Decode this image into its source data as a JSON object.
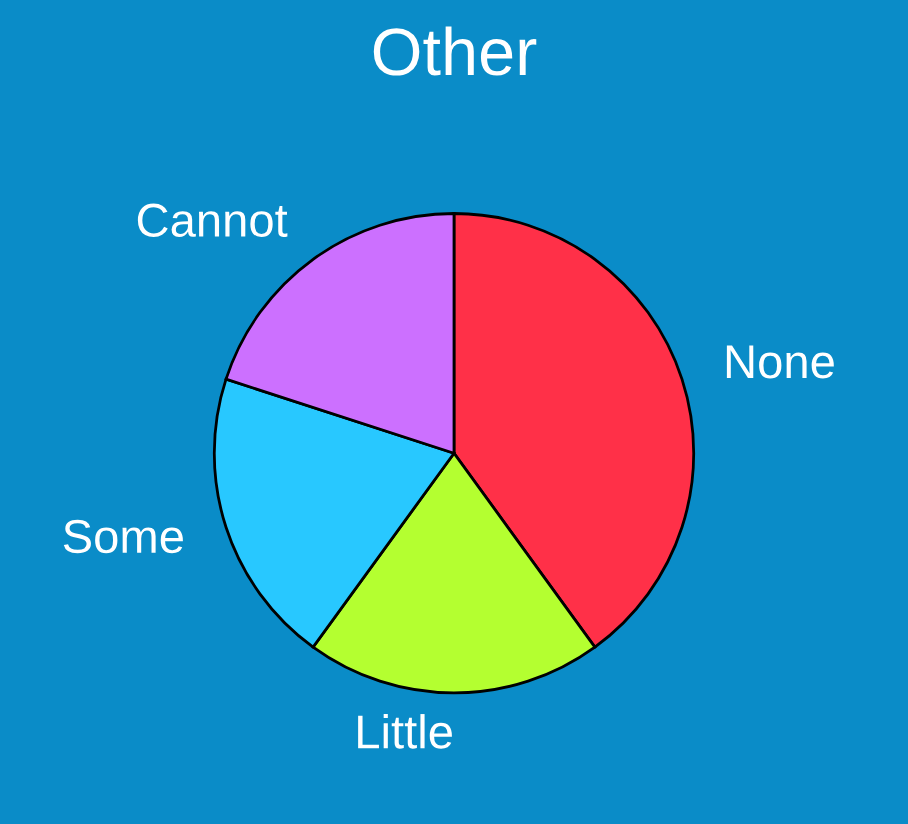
{
  "chart_data": {
    "type": "pie",
    "title": "Other",
    "categories": [
      "None",
      "Little",
      "Some",
      "Cannot"
    ],
    "values": [
      40,
      20,
      20,
      20
    ],
    "colors": [
      "#ff3048",
      "#b4ff30",
      "#28c8ff",
      "#cc70ff"
    ],
    "legend": false
  }
}
